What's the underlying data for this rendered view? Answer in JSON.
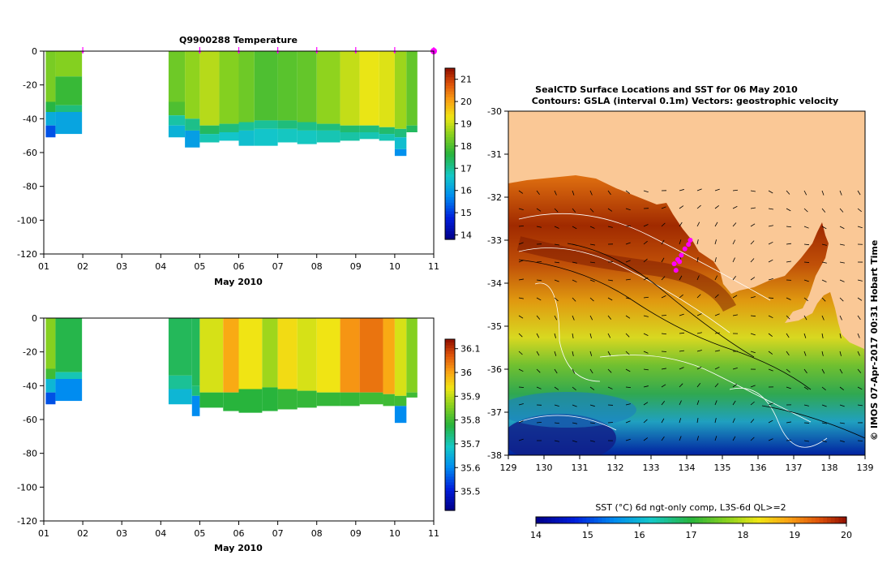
{
  "chart_data": [
    {
      "type": "heatmap",
      "id": "temperature",
      "title": "Q9900288  Temperature",
      "xlabel": "May 2010",
      "xlim": [
        1,
        11
      ],
      "x_ticks": [
        "01",
        "02",
        "03",
        "04",
        "05",
        "06",
        "07",
        "08",
        "09",
        "10",
        "11"
      ],
      "ylim": [
        -120,
        0
      ],
      "y_ticks": [
        "0",
        "-20",
        "-40",
        "-60",
        "-80",
        "-100",
        "-120"
      ],
      "clim": [
        13.8,
        21.5
      ],
      "colorbar_ticks": [
        "21",
        "20",
        "19",
        "18",
        "17",
        "16",
        "15",
        "14"
      ],
      "profile_markers": [
        2.0,
        5.0,
        6.0,
        7.0,
        8.0,
        9.0,
        10.0,
        11.0
      ],
      "blocks": [
        {
          "x0": 1.05,
          "x1": 1.3,
          "bottom": -51,
          "layers": [
            [
              0,
              -30,
              18.4
            ],
            [
              -30,
              -36,
              17.6
            ],
            [
              -36,
              -44,
              16.2
            ],
            [
              -44,
              -51,
              15.2
            ]
          ]
        },
        {
          "x0": 1.3,
          "x1": 1.98,
          "bottom": -49,
          "layers": [
            [
              0,
              -15,
              18.5
            ],
            [
              -15,
              -32,
              17.8
            ],
            [
              -32,
              -36,
              17.2
            ],
            [
              -36,
              -49,
              16.1
            ]
          ]
        },
        {
          "x0": 4.2,
          "x1": 4.62,
          "bottom": -51,
          "layers": [
            [
              0,
              -30,
              18.3
            ],
            [
              -30,
              -38,
              18.0
            ],
            [
              -38,
              -44,
              16.9
            ],
            [
              -44,
              -51,
              16.3
            ]
          ]
        },
        {
          "x0": 4.62,
          "x1": 5.0,
          "bottom": -57,
          "layers": [
            [
              0,
              -40,
              18.6
            ],
            [
              -40,
              -47,
              17.1
            ],
            [
              -47,
              -57,
              16.0
            ]
          ]
        },
        {
          "x0": 5.0,
          "x1": 5.5,
          "bottom": -54,
          "layers": [
            [
              0,
              -44,
              18.9
            ],
            [
              -44,
              -49,
              17.4
            ],
            [
              -49,
              -54,
              16.8
            ]
          ]
        },
        {
          "x0": 5.5,
          "x1": 6.0,
          "bottom": -53,
          "layers": [
            [
              0,
              -43,
              18.5
            ],
            [
              -43,
              -48,
              17.2
            ],
            [
              -48,
              -53,
              16.6
            ]
          ]
        },
        {
          "x0": 6.0,
          "x1": 6.4,
          "bottom": -56,
          "layers": [
            [
              0,
              -42,
              18.3
            ],
            [
              -42,
              -47,
              17.0
            ],
            [
              -47,
              -56,
              16.5
            ]
          ]
        },
        {
          "x0": 6.4,
          "x1": 7.0,
          "bottom": -56,
          "layers": [
            [
              0,
              -41,
              18.0
            ],
            [
              -41,
              -46,
              17.0
            ],
            [
              -46,
              -56,
              16.6
            ]
          ]
        },
        {
          "x0": 7.0,
          "x1": 7.5,
          "bottom": -54,
          "layers": [
            [
              0,
              -41,
              18.1
            ],
            [
              -41,
              -46,
              17.2
            ],
            [
              -46,
              -54,
              16.7
            ]
          ]
        },
        {
          "x0": 7.5,
          "x1": 8.0,
          "bottom": -55,
          "layers": [
            [
              0,
              -42,
              18.2
            ],
            [
              -42,
              -47,
              17.1
            ],
            [
              -47,
              -55,
              16.7
            ]
          ]
        },
        {
          "x0": 8.0,
          "x1": 8.6,
          "bottom": -54,
          "layers": [
            [
              0,
              -43,
              18.6
            ],
            [
              -43,
              -47,
              17.2
            ],
            [
              -47,
              -54,
              16.8
            ]
          ]
        },
        {
          "x0": 8.6,
          "x1": 9.1,
          "bottom": -53,
          "layers": [
            [
              0,
              -44,
              19.0
            ],
            [
              -44,
              -48,
              17.3
            ],
            [
              -48,
              -53,
              16.9
            ]
          ]
        },
        {
          "x0": 9.1,
          "x1": 9.6,
          "bottom": -52,
          "layers": [
            [
              0,
              -44,
              19.3
            ],
            [
              -44,
              -48,
              17.2
            ],
            [
              -48,
              -52,
              16.8
            ]
          ]
        },
        {
          "x0": 9.6,
          "x1": 10.0,
          "bottom": -53,
          "layers": [
            [
              0,
              -45,
              19.2
            ],
            [
              -45,
              -49,
              17.3
            ],
            [
              -49,
              -53,
              16.8
            ]
          ]
        },
        {
          "x0": 10.0,
          "x1": 10.3,
          "bottom": -62,
          "layers": [
            [
              0,
              -46,
              18.7
            ],
            [
              -46,
              -51,
              17.2
            ],
            [
              -51,
              -58,
              16.5
            ],
            [
              -58,
              -62,
              15.8
            ]
          ]
        },
        {
          "x0": 10.3,
          "x1": 10.58,
          "bottom": -48,
          "layers": [
            [
              0,
              -44,
              18.2
            ],
            [
              -44,
              -48,
              17.4
            ]
          ]
        }
      ]
    },
    {
      "type": "heatmap",
      "id": "salinity",
      "title": "",
      "xlabel": "May 2010",
      "xlim": [
        1,
        11
      ],
      "x_ticks": [
        "01",
        "02",
        "03",
        "04",
        "05",
        "06",
        "07",
        "08",
        "09",
        "10",
        "11"
      ],
      "ylim": [
        -120,
        0
      ],
      "y_ticks": [
        "0",
        "-20",
        "-40",
        "-60",
        "-80",
        "-100",
        "-120"
      ],
      "clim": [
        35.42,
        36.14
      ],
      "colorbar_ticks": [
        "36.1",
        "36",
        "35.9",
        "35.8",
        "35.7",
        "35.6",
        "35.5"
      ],
      "blocks": [
        {
          "x0": 1.05,
          "x1": 1.3,
          "bottom": -51,
          "layers": [
            [
              0,
              -30,
              35.86
            ],
            [
              -30,
              -36,
              35.8
            ],
            [
              -36,
              -44,
              35.66
            ],
            [
              -44,
              -51,
              35.55
            ]
          ]
        },
        {
          "x0": 1.3,
          "x1": 1.98,
          "bottom": -49,
          "layers": [
            [
              0,
              -32,
              35.77
            ],
            [
              -32,
              -36,
              35.7
            ],
            [
              -36,
              -49,
              35.6
            ]
          ]
        },
        {
          "x0": 4.2,
          "x1": 4.8,
          "bottom": -51,
          "layers": [
            [
              0,
              -34,
              35.76
            ],
            [
              -34,
              -42,
              35.72
            ],
            [
              -42,
              -51,
              35.66
            ]
          ]
        },
        {
          "x0": 4.8,
          "x1": 5.0,
          "bottom": -58,
          "layers": [
            [
              0,
              -40,
              35.76
            ],
            [
              -40,
              -46,
              35.74
            ],
            [
              -46,
              -58,
              35.6
            ]
          ]
        },
        {
          "x0": 5.0,
          "x1": 5.6,
          "bottom": -53,
          "layers": [
            [
              0,
              -44,
              35.92
            ],
            [
              -44,
              -53,
              35.78
            ]
          ]
        },
        {
          "x0": 5.6,
          "x1": 6.0,
          "bottom": -55,
          "layers": [
            [
              0,
              -44,
              36.0
            ],
            [
              -44,
              -55,
              35.78
            ]
          ]
        },
        {
          "x0": 6.0,
          "x1": 6.6,
          "bottom": -56,
          "layers": [
            [
              0,
              -42,
              35.94
            ],
            [
              -42,
              -56,
              35.78
            ]
          ]
        },
        {
          "x0": 6.6,
          "x1": 7.0,
          "bottom": -55,
          "layers": [
            [
              0,
              -41,
              35.88
            ],
            [
              -41,
              -55,
              35.78
            ]
          ]
        },
        {
          "x0": 7.0,
          "x1": 7.5,
          "bottom": -54,
          "layers": [
            [
              0,
              -42,
              35.95
            ],
            [
              -42,
              -54,
              35.79
            ]
          ]
        },
        {
          "x0": 7.5,
          "x1": 8.0,
          "bottom": -53,
          "layers": [
            [
              0,
              -43,
              35.92
            ],
            [
              -43,
              -53,
              35.79
            ]
          ]
        },
        {
          "x0": 8.0,
          "x1": 8.6,
          "bottom": -52,
          "layers": [
            [
              0,
              -44,
              35.94
            ],
            [
              -44,
              -52,
              35.79
            ]
          ]
        },
        {
          "x0": 8.6,
          "x1": 9.1,
          "bottom": -52,
          "layers": [
            [
              0,
              -44,
              36.02
            ],
            [
              -44,
              -52,
              35.79
            ]
          ]
        },
        {
          "x0": 9.1,
          "x1": 9.7,
          "bottom": -51,
          "layers": [
            [
              0,
              -44,
              36.05
            ],
            [
              -44,
              -51,
              35.8
            ]
          ]
        },
        {
          "x0": 9.7,
          "x1": 10.0,
          "bottom": -52,
          "layers": [
            [
              0,
              -45,
              36.0
            ],
            [
              -45,
              -52,
              35.8
            ]
          ]
        },
        {
          "x0": 10.0,
          "x1": 10.3,
          "bottom": -62,
          "layers": [
            [
              0,
              -46,
              35.92
            ],
            [
              -46,
              -52,
              35.8
            ],
            [
              -52,
              -62,
              35.6
            ]
          ]
        },
        {
          "x0": 10.3,
          "x1": 10.58,
          "bottom": -47,
          "layers": [
            [
              0,
              -44,
              35.86
            ],
            [
              -44,
              -47,
              35.8
            ]
          ]
        }
      ]
    },
    {
      "type": "heatmap",
      "id": "sst_map",
      "title_line1": "SealCTD Surface Locations and SST for 06 May 2010",
      "title_line2": "Contours: GSLA (interval 0.1m)  Vectors: geostrophic velocity",
      "xlim": [
        129,
        139
      ],
      "ylim": [
        -38,
        -30
      ],
      "x_ticks": [
        "129",
        "130",
        "131",
        "132",
        "133",
        "134",
        "135",
        "136",
        "137",
        "138",
        "139"
      ],
      "y_ticks": [
        "-30",
        "-31",
        "-32",
        "-33",
        "-34",
        "-35",
        "-36",
        "-37",
        "-38"
      ],
      "clim": [
        14,
        20
      ],
      "colorbar_ticks": [
        "14",
        "15",
        "16",
        "17",
        "18",
        "19",
        "20"
      ],
      "colorbar_label": "SST (°C) 6d ngt-only comp, L3S-6d QL>=2",
      "side_label": "© IMOS 07-Apr-2017 00:31 Hobart Time",
      "seal_locations": [
        [
          133.65,
          -33.55
        ],
        [
          133.75,
          -33.45
        ],
        [
          133.85,
          -33.35
        ],
        [
          133.95,
          -33.2
        ],
        [
          134.05,
          -33.1
        ],
        [
          134.1,
          -33.0
        ],
        [
          133.7,
          -33.7
        ],
        [
          133.8,
          -33.5
        ]
      ]
    }
  ],
  "colors": {
    "land": "#fac896",
    "marker": "#ff00ff"
  }
}
